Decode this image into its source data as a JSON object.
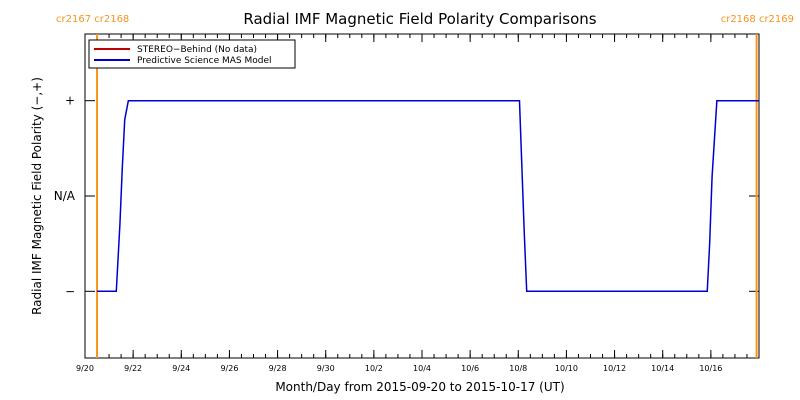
{
  "chart_data": {
    "type": "line",
    "title": "Radial IMF Magnetic Field Polarity Comparisons",
    "xlabel": "Month/Day from 2015-09-20 to 2015-10-17 (UT)",
    "ylabel": "Radial IMF Magnetic Field Polarity (−,+)",
    "xlim": [
      0,
      28
    ],
    "ylim": [
      -1.7,
      1.7
    ],
    "y_ticks": [
      {
        "value": 1,
        "label": "+"
      },
      {
        "value": 0,
        "label": "N/A"
      },
      {
        "value": -1,
        "label": "−"
      }
    ],
    "x_ticks": [
      {
        "value": 0,
        "label": "9/20"
      },
      {
        "value": 2,
        "label": "9/22"
      },
      {
        "value": 4,
        "label": "9/24"
      },
      {
        "value": 6,
        "label": "9/26"
      },
      {
        "value": 8,
        "label": "9/28"
      },
      {
        "value": 10,
        "label": "9/30"
      },
      {
        "value": 12,
        "label": "10/2"
      },
      {
        "value": 14,
        "label": "10/4"
      },
      {
        "value": 16,
        "label": "10/6"
      },
      {
        "value": 18,
        "label": "10/8"
      },
      {
        "value": 20,
        "label": "10/10"
      },
      {
        "value": 22,
        "label": "10/12"
      },
      {
        "value": 24,
        "label": "10/14"
      },
      {
        "value": 26,
        "label": "10/16"
      }
    ],
    "carrington_markers": [
      {
        "x": 0.5,
        "labels": [
          "cr2167",
          "cr2168"
        ],
        "side": "left"
      },
      {
        "x": 27.9,
        "labels": [
          "cr2168",
          "cr2169"
        ],
        "side": "right"
      }
    ],
    "series": [
      {
        "name": "STEREO−Behind (No data)",
        "color": "#c00000",
        "x": [],
        "y": []
      },
      {
        "name": "Predictive Science MAS Model",
        "color": "#0000cc",
        "x": [
          0.5,
          1.3,
          1.45,
          1.55,
          1.65,
          1.8,
          18.05,
          18.15,
          18.25,
          18.35,
          25.85,
          25.95,
          26.05,
          26.15,
          26.25,
          28
        ],
        "y": [
          -1,
          -1,
          -0.3,
          0.3,
          0.8,
          1,
          1,
          0.3,
          -0.4,
          -1,
          -1,
          -0.5,
          0.2,
          0.6,
          1,
          1
        ]
      }
    ],
    "legend_position": "top-left"
  },
  "colors": {
    "marker": "#f7941d",
    "axes": "#000000"
  }
}
